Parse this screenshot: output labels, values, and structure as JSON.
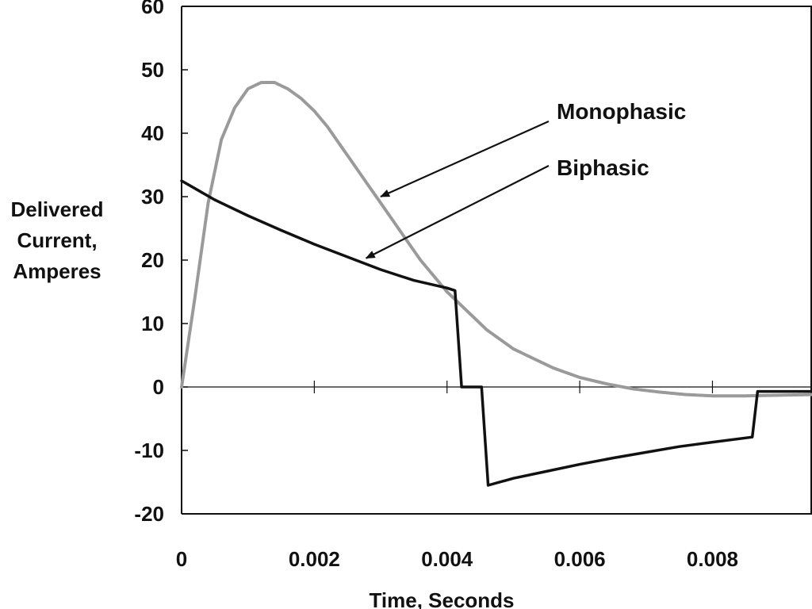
{
  "chart_data": {
    "type": "line",
    "xlabel": "Time, Seconds",
    "ylabel": [
      "Delivered",
      "Current,",
      "Amperes"
    ],
    "xlim": [
      0,
      0.0095
    ],
    "ylim": [
      -20,
      60
    ],
    "x_ticks": [
      0,
      0.002,
      0.004,
      0.006,
      0.008
    ],
    "x_tick_labels": [
      "0",
      "0.002",
      "0.004",
      "0.006",
      "0.008"
    ],
    "y_ticks": [
      -20,
      -10,
      0,
      10,
      20,
      30,
      40,
      50,
      60
    ],
    "y_tick_labels": [
      "-20",
      "-10",
      "0",
      "10",
      "20",
      "30",
      "40",
      "50",
      "60"
    ],
    "grid": false,
    "series": [
      {
        "name": "Monophasic",
        "color": "#9a9a9a",
        "x": [
          0,
          0.0002,
          0.0004,
          0.0006,
          0.0008,
          0.001,
          0.0012,
          0.0014,
          0.0016,
          0.0018,
          0.002,
          0.0022,
          0.0024,
          0.0026,
          0.0028,
          0.003,
          0.0032,
          0.0034,
          0.0036,
          0.0038,
          0.004,
          0.0042,
          0.0044,
          0.0046,
          0.0048,
          0.005,
          0.0053,
          0.0056,
          0.006,
          0.0064,
          0.0068,
          0.0072,
          0.0076,
          0.008,
          0.0085,
          0.009,
          0.0095
        ],
        "y": [
          0,
          14,
          29,
          39,
          44,
          47,
          48,
          48,
          47,
          45.5,
          43.5,
          41,
          38,
          35,
          32,
          29,
          26,
          23,
          20,
          17.5,
          15,
          13,
          11,
          9,
          7.5,
          6,
          4.5,
          3,
          1.5,
          0.5,
          -0.3,
          -0.8,
          -1.2,
          -1.4,
          -1.4,
          -1.3,
          -1.2
        ]
      },
      {
        "name": "Biphasic",
        "color": "#111111",
        "x": [
          0,
          0.0005,
          0.001,
          0.0015,
          0.002,
          0.0025,
          0.003,
          0.0035,
          0.004,
          0.00412,
          0.00422,
          0.00452,
          0.00462,
          0.005,
          0.0055,
          0.006,
          0.0065,
          0.007,
          0.0075,
          0.008,
          0.0086,
          0.00868,
          0.0095
        ],
        "y": [
          32.5,
          29.5,
          27,
          24.7,
          22.5,
          20.5,
          18.5,
          16.8,
          15.6,
          15.2,
          0,
          0,
          -15.5,
          -14.4,
          -13.3,
          -12.2,
          -11.2,
          -10.3,
          -9.4,
          -8.7,
          -7.9,
          -0.7,
          -0.7
        ]
      }
    ],
    "annotations": [
      {
        "text": "Monophasic",
        "target_series": "Monophasic",
        "target": [
          0.003,
          30
        ]
      },
      {
        "text": "Biphasic",
        "target_series": "Biphasic",
        "target": [
          0.00278,
          20.3
        ]
      }
    ]
  }
}
